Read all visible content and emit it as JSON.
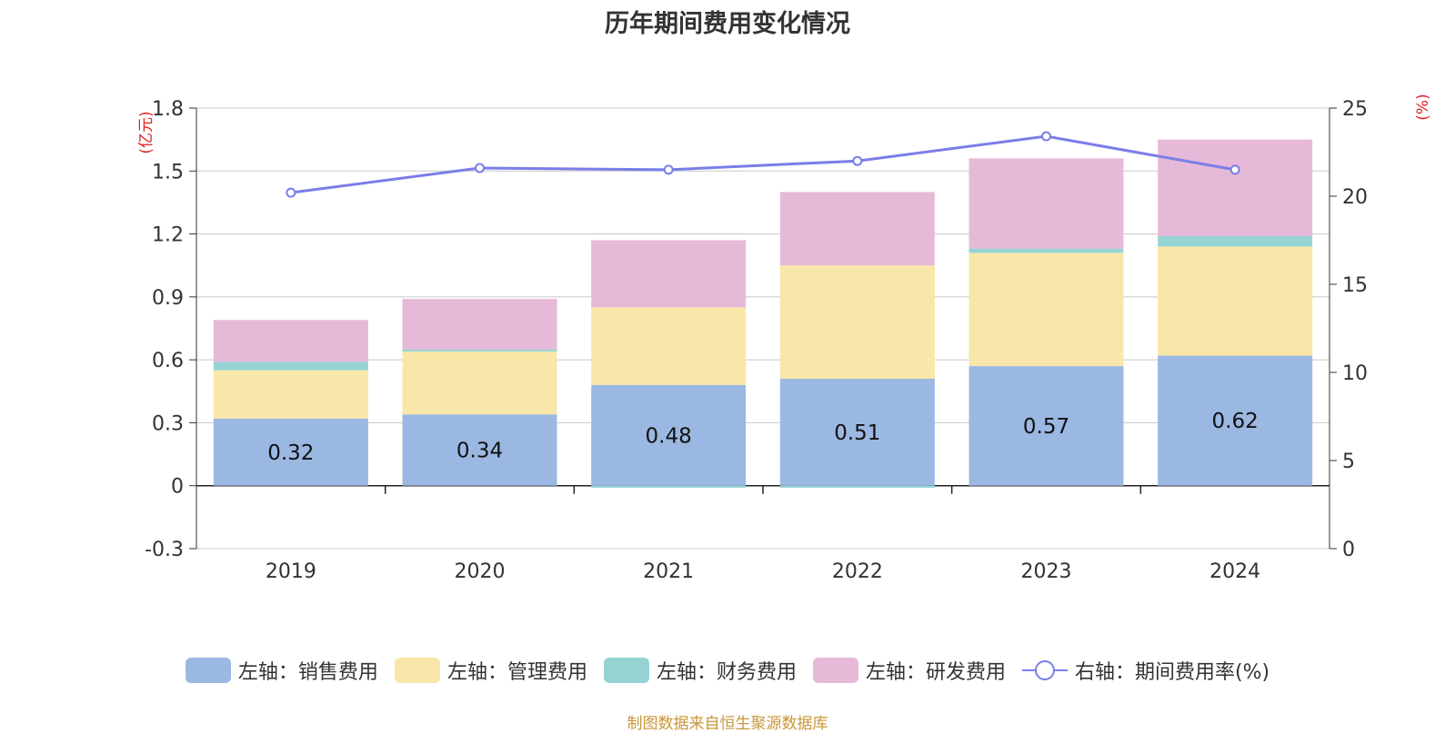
{
  "chart_data": {
    "type": "bar",
    "title": "历年期间费用变化情况",
    "categories": [
      "2019",
      "2020",
      "2021",
      "2022",
      "2023",
      "2024"
    ],
    "stacked": true,
    "left_axis": {
      "unit_label": "(亿元)",
      "ylim": [
        -0.3,
        1.8
      ],
      "ticks": [
        -0.3,
        0,
        0.3,
        0.6,
        0.9,
        1.2,
        1.5,
        1.8
      ],
      "tick_labels": [
        "-0.3",
        "0",
        "0.3",
        "0.6",
        "0.9",
        "1.2",
        "1.5",
        "1.8"
      ]
    },
    "right_axis": {
      "unit_label": "(%)",
      "ylim": [
        0,
        25
      ],
      "ticks": [
        0,
        5,
        10,
        15,
        20,
        25
      ],
      "tick_labels": [
        "0",
        "5",
        "10",
        "15",
        "20",
        "25"
      ]
    },
    "grid": true,
    "legend_position": "bottom",
    "series": [
      {
        "name": "左轴：销售费用",
        "axis": "left",
        "type": "bar",
        "color": "#9bb8e2",
        "values": [
          0.32,
          0.34,
          0.48,
          0.51,
          0.57,
          0.62
        ],
        "data_labels": [
          "0.32",
          "0.34",
          "0.48",
          "0.51",
          "0.57",
          "0.62"
        ]
      },
      {
        "name": "左轴：管理费用",
        "axis": "left",
        "type": "bar",
        "color": "#f8e7a8",
        "values": [
          0.23,
          0.3,
          0.37,
          0.54,
          0.54,
          0.52
        ]
      },
      {
        "name": "左轴：财务费用",
        "axis": "left",
        "type": "bar",
        "color": "#96d4d4",
        "values": [
          0.04,
          0.01,
          -0.01,
          -0.01,
          0.02,
          0.05
        ]
      },
      {
        "name": "左轴：研发费用",
        "axis": "left",
        "type": "bar",
        "color": "#e7b9d8",
        "values": [
          0.2,
          0.24,
          0.32,
          0.35,
          0.43,
          0.46
        ]
      },
      {
        "name": "右轴：期间费用率(%)",
        "axis": "right",
        "type": "line",
        "color": "#7a7ee8",
        "values": [
          20.2,
          21.6,
          21.5,
          22.0,
          23.4,
          21.5
        ]
      }
    ]
  },
  "footer": {
    "source": "制图数据来自恒生聚源数据库"
  }
}
